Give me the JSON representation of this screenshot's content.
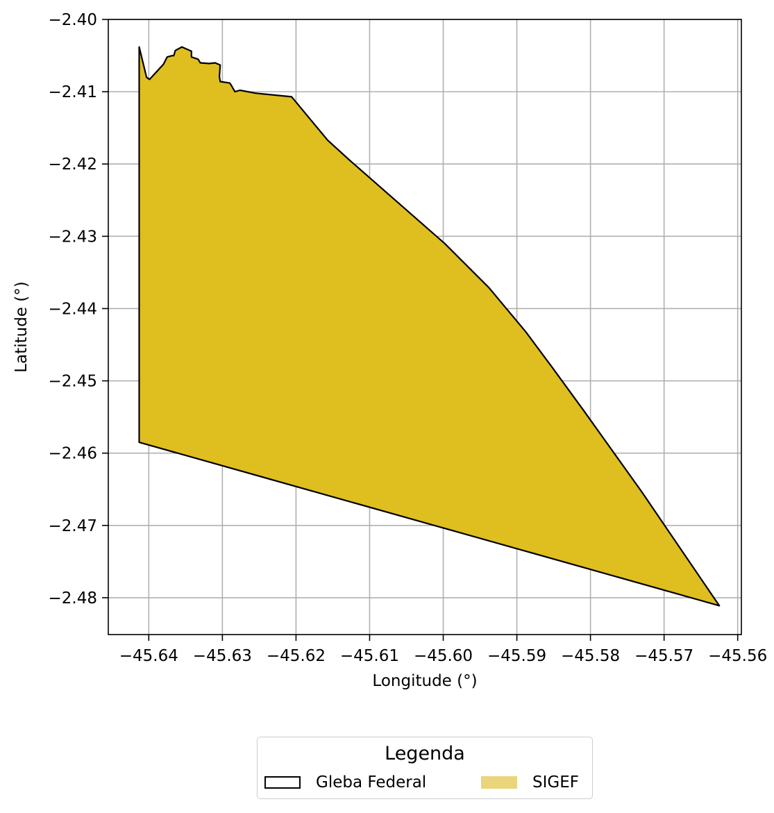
{
  "chart_data": {
    "type": "map",
    "xlabel": "Longitude (°)",
    "ylabel": "Latitude (°)",
    "xlim": [
      -45.6455,
      -45.5595
    ],
    "ylim": [
      -2.4851,
      -2.4
    ],
    "xticks": [
      -45.64,
      -45.63,
      -45.62,
      -45.61,
      -45.6,
      -45.59,
      -45.58,
      -45.57,
      -45.56
    ],
    "xtick_labels": [
      "−45.64",
      "−45.63",
      "−45.62",
      "−45.61",
      "−45.60",
      "−45.59",
      "−45.58",
      "−45.57",
      "−45.56"
    ],
    "yticks": [
      -2.4,
      -2.41,
      -2.42,
      -2.43,
      -2.44,
      -2.45,
      -2.46,
      -2.47,
      -2.48
    ],
    "ytick_labels": [
      "−2.40",
      "−2.41",
      "−2.42",
      "−2.43",
      "−2.44",
      "−2.45",
      "−2.46",
      "−2.47",
      "−2.48"
    ],
    "grid": true,
    "legend": {
      "title": "Legenda",
      "placement": "bottom-center",
      "entries": [
        {
          "label": "Gleba Federal",
          "style": "outline",
          "color": "#000000"
        },
        {
          "label": "SIGEF",
          "style": "fill",
          "color": "#ebd57a"
        }
      ]
    },
    "polygon": {
      "fill": "#dfbe20",
      "stroke": "#000000",
      "points": [
        [
          -45.6413,
          -2.4038
        ],
        [
          -45.6403,
          -2.408
        ],
        [
          -45.6399,
          -2.4083
        ],
        [
          -45.638,
          -2.4062
        ],
        [
          -45.6375,
          -2.4052
        ],
        [
          -45.6368,
          -2.405
        ],
        [
          -45.6366,
          -2.405
        ],
        [
          -45.6364,
          -2.4043
        ],
        [
          -45.6355,
          -2.4038
        ],
        [
          -45.6342,
          -2.4044
        ],
        [
          -45.6342,
          -2.4052
        ],
        [
          -45.6333,
          -2.4055
        ],
        [
          -45.633,
          -2.406
        ],
        [
          -45.6318,
          -2.4061
        ],
        [
          -45.631,
          -2.406
        ],
        [
          -45.6303,
          -2.4063
        ],
        [
          -45.6304,
          -2.4079
        ],
        [
          -45.6303,
          -2.4086
        ],
        [
          -45.629,
          -2.4088
        ],
        [
          -45.6288,
          -2.4091
        ],
        [
          -45.6283,
          -2.41
        ],
        [
          -45.6276,
          -2.4098
        ],
        [
          -45.6255,
          -2.4102
        ],
        [
          -45.6206,
          -2.4107
        ],
        [
          -45.6157,
          -2.4167
        ],
        [
          -45.6128,
          -2.4194
        ],
        [
          -45.5998,
          -2.431
        ],
        [
          -45.5938,
          -2.4371
        ],
        [
          -45.5888,
          -2.4432
        ],
        [
          -45.5853,
          -2.448
        ],
        [
          -45.581,
          -2.454
        ],
        [
          -45.573,
          -2.4654
        ],
        [
          -45.5625,
          -2.4811
        ],
        [
          -45.6413,
          -2.4585
        ]
      ]
    }
  }
}
